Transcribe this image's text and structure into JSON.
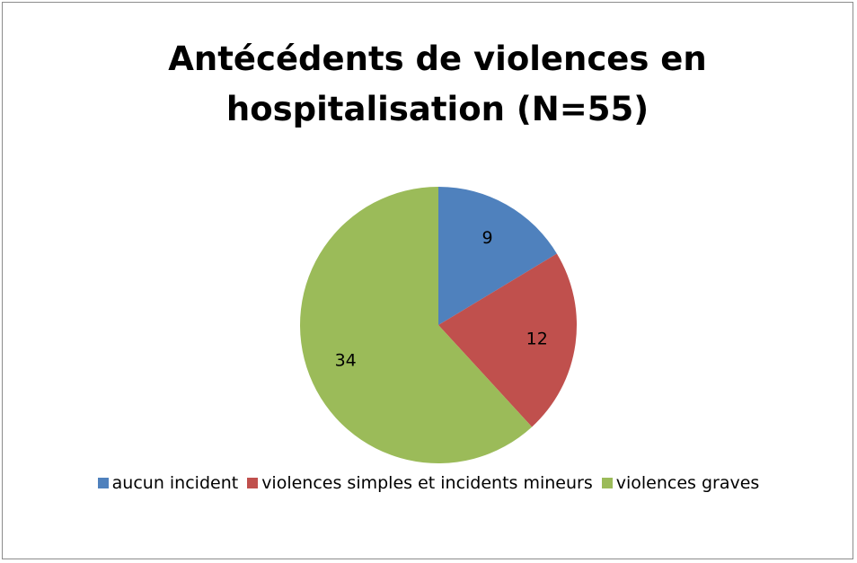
{
  "chart_data": {
    "type": "pie",
    "title": "Antécédents de violences en hospitalisation (N=55)",
    "categories": [
      "aucun incident",
      "violences simples et incidents mineurs",
      "violences graves"
    ],
    "values": [
      9,
      12,
      34
    ],
    "colors": [
      "#4f81bd",
      "#c0504d",
      "#9bbb59"
    ],
    "legend": "bottom"
  }
}
